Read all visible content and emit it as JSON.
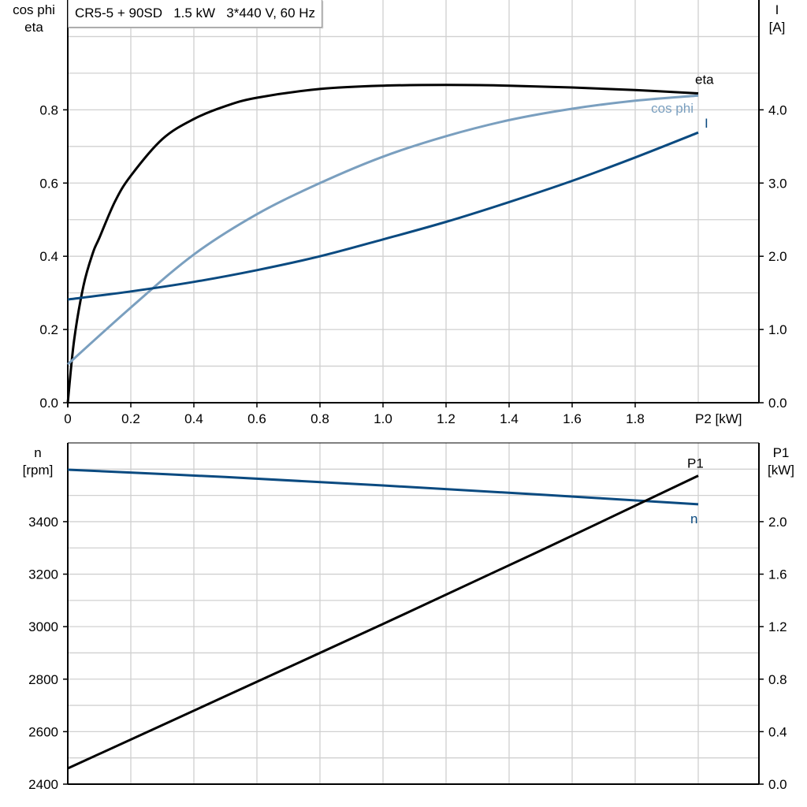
{
  "chart_data": [
    {
      "type": "line",
      "title": "CR5-5 + 90SD   1.5 kW   3*440 V, 60 Hz",
      "xlabel": "P2 [kW]",
      "ylabel_left": [
        "cos phi",
        "eta"
      ],
      "ylabel_right": [
        "I",
        "[A]"
      ],
      "xlim": [
        0,
        2.19
      ],
      "ylim_left": [
        0,
        1.1
      ],
      "ylim_right": [
        0,
        5.5
      ],
      "x_ticks": [
        "0",
        "0.2",
        "0.4",
        "0.6",
        "0.8",
        "1.0",
        "1.2",
        "1.4",
        "1.6",
        "1.8"
      ],
      "y_ticks_left": [
        "0.0",
        "0.2",
        "0.4",
        "0.6",
        "0.8"
      ],
      "y_ticks_right": [
        "0.0",
        "1.0",
        "2.0",
        "3.0",
        "4.0"
      ],
      "grid": true,
      "series": [
        {
          "name": "eta",
          "axis": "left",
          "color": "#000000",
          "x": [
            0,
            0.02,
            0.05,
            0.08,
            0.1,
            0.15,
            0.2,
            0.3,
            0.4,
            0.5,
            0.6,
            0.8,
            1.0,
            1.2,
            1.4,
            1.6,
            1.8,
            2.0
          ],
          "y": [
            0,
            0.17,
            0.32,
            0.41,
            0.45,
            0.55,
            0.62,
            0.72,
            0.775,
            0.81,
            0.833,
            0.857,
            0.866,
            0.868,
            0.866,
            0.861,
            0.854,
            0.845
          ]
        },
        {
          "name": "cos phi",
          "axis": "left",
          "color": "#7a9fbf",
          "x": [
            0,
            0.2,
            0.4,
            0.6,
            0.8,
            1.0,
            1.2,
            1.4,
            1.6,
            1.8,
            2.0
          ],
          "y": [
            0.105,
            0.26,
            0.405,
            0.515,
            0.6,
            0.672,
            0.728,
            0.772,
            0.803,
            0.825,
            0.839
          ]
        },
        {
          "name": "I",
          "axis": "right",
          "color": "#0a4a80",
          "x": [
            0,
            0.2,
            0.4,
            0.6,
            0.8,
            1.0,
            1.2,
            1.4,
            1.6,
            1.8,
            2.0
          ],
          "y": [
            1.41,
            1.52,
            1.65,
            1.81,
            2.0,
            2.23,
            2.47,
            2.74,
            3.03,
            3.35,
            3.69
          ]
        }
      ]
    },
    {
      "type": "line",
      "ylabel_left": [
        "n",
        "[rpm]"
      ],
      "ylabel_right": [
        "P1",
        "[kW]"
      ],
      "xlim": [
        0,
        2.19
      ],
      "ylim_left": [
        2400,
        3700
      ],
      "ylim_right": [
        0,
        2.6
      ],
      "y_ticks_left": [
        "2400",
        "2600",
        "2800",
        "3000",
        "3200",
        "3400"
      ],
      "y_ticks_right": [
        "0.0",
        "0.4",
        "0.8",
        "1.2",
        "1.6",
        "2.0"
      ],
      "grid": true,
      "series": [
        {
          "name": "n",
          "axis": "left",
          "color": "#0a4a80",
          "x": [
            0,
            0.5,
            1.0,
            1.5,
            2.0
          ],
          "y": [
            3598,
            3570,
            3538,
            3503,
            3466
          ]
        },
        {
          "name": "P1",
          "axis": "right",
          "color": "#000000",
          "x": [
            0,
            0.5,
            1.0,
            1.5,
            2.0
          ],
          "y": [
            0.12,
            0.67,
            1.22,
            1.78,
            2.35
          ]
        }
      ]
    }
  ]
}
